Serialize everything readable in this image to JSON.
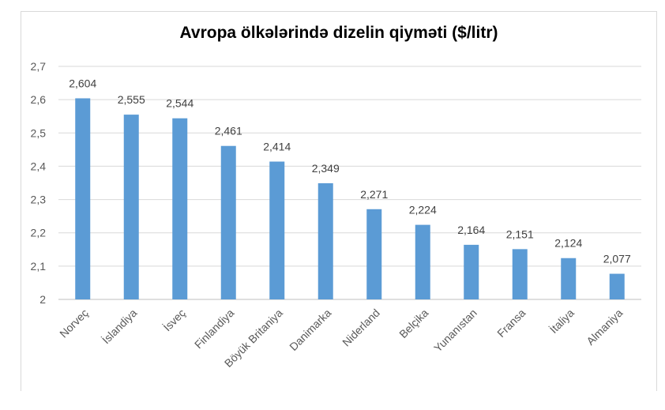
{
  "chart_data": {
    "type": "bar",
    "title": "Avropa ölkələrində dizelin qiyməti ($/litr)",
    "categories": [
      "Norveç",
      "İslandiya",
      "İsveç",
      "Finlandiya",
      "Böyük Britaniya",
      "Danimarka",
      "Niderland",
      "Belçika",
      "Yunanıstan",
      "Fransa",
      "İtaliya",
      "Almaniya"
    ],
    "values": [
      2.604,
      2.555,
      2.544,
      2.461,
      2.414,
      2.349,
      2.271,
      2.224,
      2.164,
      2.151,
      2.124,
      2.077
    ],
    "value_labels": [
      "2,604",
      "2,555",
      "2,544",
      "2,461",
      "2,414",
      "2,349",
      "2,271",
      "2,224",
      "2,164",
      "2,151",
      "2,124",
      "2,077"
    ],
    "ylim": [
      2,
      2.7
    ],
    "yticks": [
      2,
      2.1,
      2.2,
      2.3,
      2.4,
      2.5,
      2.6,
      2.7
    ],
    "ytick_labels": [
      "2",
      "2,1",
      "2,2",
      "2,3",
      "2,4",
      "2,5",
      "2,6",
      "2,7"
    ],
    "grid": true,
    "legend": "none",
    "bar_color": "#5b9bd5"
  }
}
